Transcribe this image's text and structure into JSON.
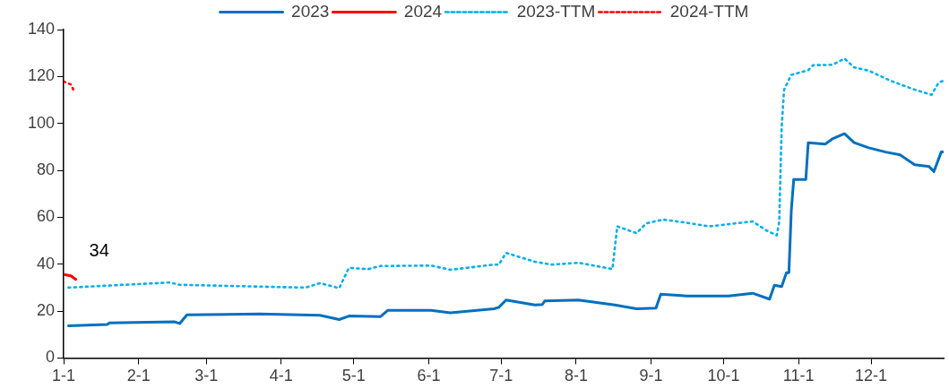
{
  "chart_data": {
    "type": "line",
    "xlim": [
      "--01-01",
      "--12-31"
    ],
    "xticks": [
      {
        "value": "--01-01",
        "label": "1-1"
      },
      {
        "value": "--02-01",
        "label": "2-1"
      },
      {
        "value": "--03-01",
        "label": "3-1"
      },
      {
        "value": "--04-01",
        "label": "4-1"
      },
      {
        "value": "--05-01",
        "label": "5-1"
      },
      {
        "value": "--06-01",
        "label": "6-1"
      },
      {
        "value": "--07-01",
        "label": "7-1"
      },
      {
        "value": "--08-01",
        "label": "8-1"
      },
      {
        "value": "--09-01",
        "label": "9-1"
      },
      {
        "value": "--10-01",
        "label": "10-1"
      },
      {
        "value": "--11-01",
        "label": "11-1"
      },
      {
        "value": "--12-01",
        "label": "12-1"
      }
    ],
    "ylim": [
      0,
      140
    ],
    "yticks": [
      0,
      20,
      40,
      60,
      80,
      100,
      120,
      140
    ],
    "grid": false,
    "legend": "top",
    "marker": "none",
    "annotations": [
      {
        "text": "34",
        "x": "--01-06",
        "y": 33.5
      }
    ],
    "series": [
      {
        "name": "2023",
        "color": "#0070c0",
        "line_style": "solid",
        "x": [
          "--01-03",
          "--01-19",
          "--01-20",
          "--02-16",
          "--02-18",
          "--02-21",
          "--03-23",
          "--04-17",
          "--04-25",
          "--04-29",
          "--05-12",
          "--05-15",
          "--06-02",
          "--06-10",
          "--06-28",
          "--06-30",
          "--07-03",
          "--07-15",
          "--07-18",
          "--07-19",
          "--08-02",
          "--08-17",
          "--08-26",
          "--09-03",
          "--09-05",
          "--09-16",
          "--10-03",
          "--10-13",
          "--10-20",
          "--10-22",
          "--10-25",
          "--10-27",
          "--10-28",
          "--10-29",
          "--10-30",
          "--11-04",
          "--11-05",
          "--11-12",
          "--11-15",
          "--11-20",
          "--11-24",
          "--11-30",
          "--12-07",
          "--12-13",
          "--12-19",
          "--12-25",
          "--12-27",
          "--12-30",
          "--12-31"
        ],
        "values": [
          13.7,
          14.3,
          15,
          15.4,
          14.7,
          18.4,
          18.8,
          18.2,
          16.4,
          17.9,
          17.6,
          20.3,
          20.3,
          19.3,
          21,
          21.6,
          24.7,
          22.6,
          22.8,
          24.3,
          24.7,
          22.6,
          21,
          21.3,
          27.2,
          26.4,
          26.4,
          27.6,
          25.1,
          31,
          30.4,
          36.4,
          36.4,
          63,
          76.1,
          76.1,
          91.8,
          91.2,
          93.4,
          95.6,
          91.8,
          89.6,
          87.8,
          86.6,
          82.4,
          81.6,
          79.5,
          87.8,
          87.8
        ]
      },
      {
        "name": "2024",
        "color": "#ff0000",
        "line_style": "solid",
        "x": [
          "--01-01",
          "--01-04",
          "--01-06"
        ],
        "values": [
          35.6,
          35,
          33.5
        ]
      },
      {
        "name": "2023-TTM",
        "color": "#00b0f0",
        "line_style": "dotted",
        "x": [
          "--01-03",
          "--02-14",
          "--02-18",
          "--04-11",
          "--04-17",
          "--04-25",
          "--04-29",
          "--05-07",
          "--05-12",
          "--06-02",
          "--06-10",
          "--06-28",
          "--06-30",
          "--07-03",
          "--07-15",
          "--07-22",
          "--08-02",
          "--08-16",
          "--08-18",
          "--08-26",
          "--08-30",
          "--09-06",
          "--09-16",
          "--09-25",
          "--10-13",
          "--10-19",
          "--10-23",
          "--10-24",
          "--10-25",
          "--10-26",
          "--10-29",
          "--11-05",
          "--11-07",
          "--11-15",
          "--11-20",
          "--11-24",
          "--11-30",
          "--12-09",
          "--12-19",
          "--12-26",
          "--12-29",
          "--12-31"
        ],
        "values": [
          30,
          32.2,
          31.2,
          30,
          31.9,
          29.8,
          38.4,
          37.9,
          39.2,
          39.4,
          37.6,
          39.8,
          39.8,
          44.8,
          41,
          39.8,
          40.6,
          37.9,
          56.1,
          53.2,
          57.4,
          59,
          57.6,
          56.1,
          58.2,
          54.2,
          52.3,
          58,
          98.2,
          114.4,
          120.7,
          122.7,
          124.8,
          125,
          127.6,
          123.9,
          122.5,
          118.2,
          114.4,
          112.2,
          117.5,
          118.2
        ]
      },
      {
        "name": "2024-TTM",
        "color": "#ff0505",
        "line_style": "dotted",
        "x": [
          "--01-01",
          "--01-04",
          "--01-05"
        ],
        "values": [
          117.9,
          116.6,
          114.4
        ]
      }
    ]
  }
}
